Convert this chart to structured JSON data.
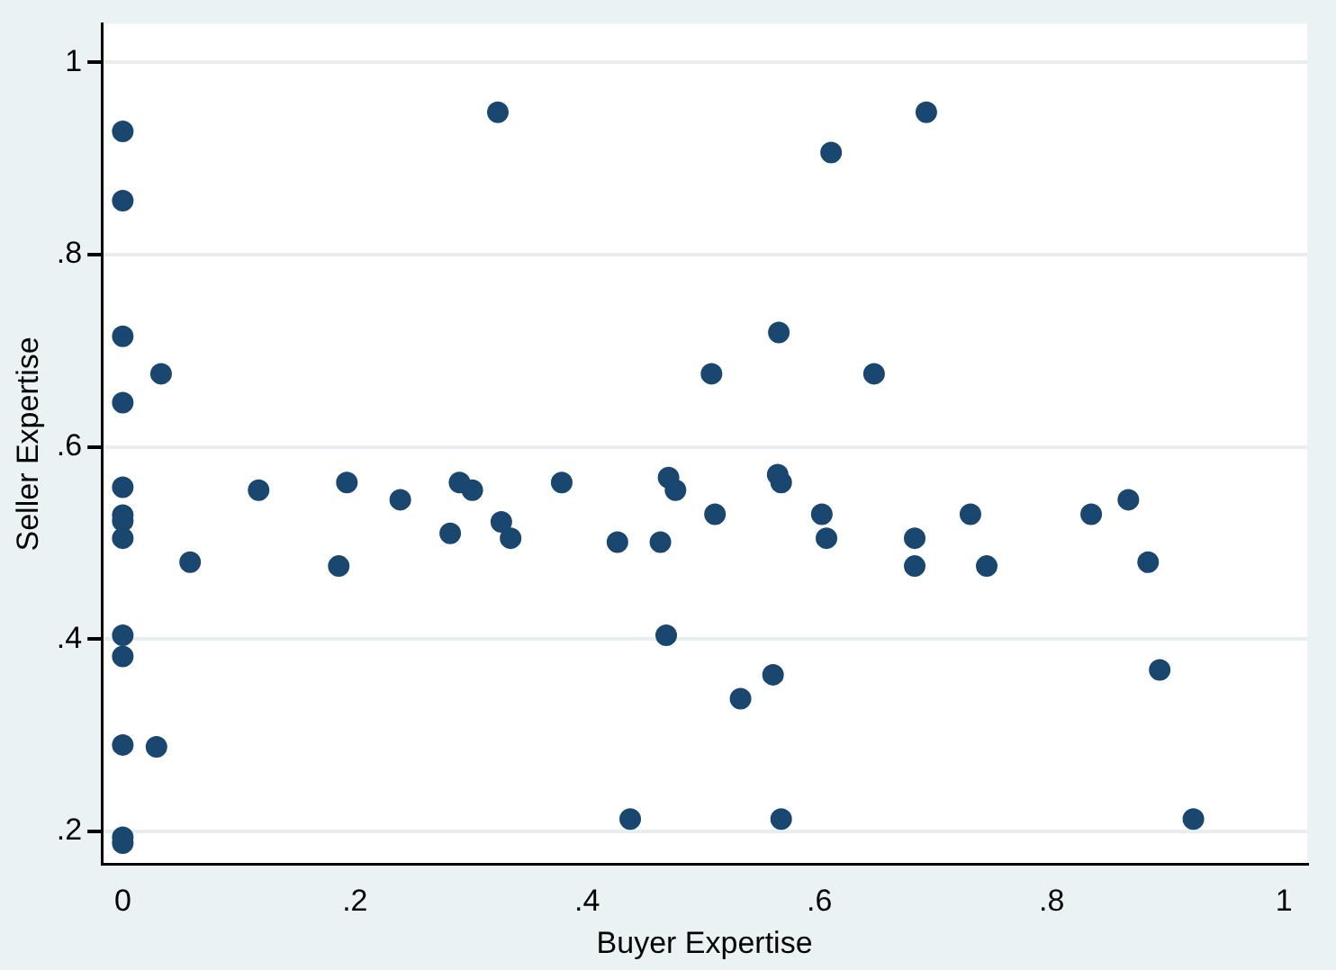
{
  "chart_data": {
    "type": "scatter",
    "xlabel": "Buyer Expertise",
    "ylabel": "Seller Expertise",
    "marker": "circle",
    "grid": "y",
    "xlim": [
      -0.018,
      1.02
    ],
    "ylim": [
      0.166,
      1.04
    ],
    "xticks": [
      0,
      {
        "value": 0.2,
        "label": ".2"
      },
      {
        "value": 0.4,
        "label": ".4"
      },
      {
        "value": 0.6,
        "label": ".6"
      },
      {
        "value": 0.8,
        "label": ".8"
      },
      1
    ],
    "yticks": [
      {
        "value": 0.2,
        "label": ".2"
      },
      {
        "value": 0.4,
        "label": ".4"
      },
      {
        "value": 0.6,
        "label": ".6"
      },
      {
        "value": 0.8,
        "label": ".8"
      },
      1
    ],
    "series": [
      {
        "color": "#1a476f",
        "x": [
          0,
          0,
          0,
          0,
          0,
          0,
          0,
          0,
          0,
          0,
          0,
          0,
          0,
          0.033,
          0.058,
          0.029,
          0.117,
          0.186,
          0.193,
          0.239,
          0.323,
          0.282,
          0.29,
          0.301,
          0.326,
          0.334,
          0.378,
          0.426,
          0.463,
          0.47,
          0.476,
          0.468,
          0.437,
          0.692,
          0.61,
          0.565,
          0.507,
          0.647,
          0.564,
          0.567,
          0.51,
          0.602,
          0.606,
          0.682,
          0.682,
          0.73,
          0.744,
          0.834,
          0.866,
          0.883,
          0.893,
          0.922,
          0.567,
          0.56,
          0.532
        ],
        "values": [
          0.928,
          0.856,
          0.715,
          0.646,
          0.558,
          0.529,
          0.523,
          0.505,
          0.404,
          0.382,
          0.29,
          0.194,
          0.188,
          0.676,
          0.48,
          0.288,
          0.555,
          0.476,
          0.563,
          0.545,
          0.948,
          0.51,
          0.563,
          0.555,
          0.522,
          0.505,
          0.563,
          0.501,
          0.501,
          0.568,
          0.555,
          0.404,
          0.213,
          0.948,
          0.906,
          0.719,
          0.676,
          0.676,
          0.571,
          0.563,
          0.53,
          0.53,
          0.505,
          0.505,
          0.476,
          0.53,
          0.476,
          0.53,
          0.545,
          0.48,
          0.368,
          0.213,
          0.213,
          0.363,
          0.338
        ]
      }
    ]
  }
}
